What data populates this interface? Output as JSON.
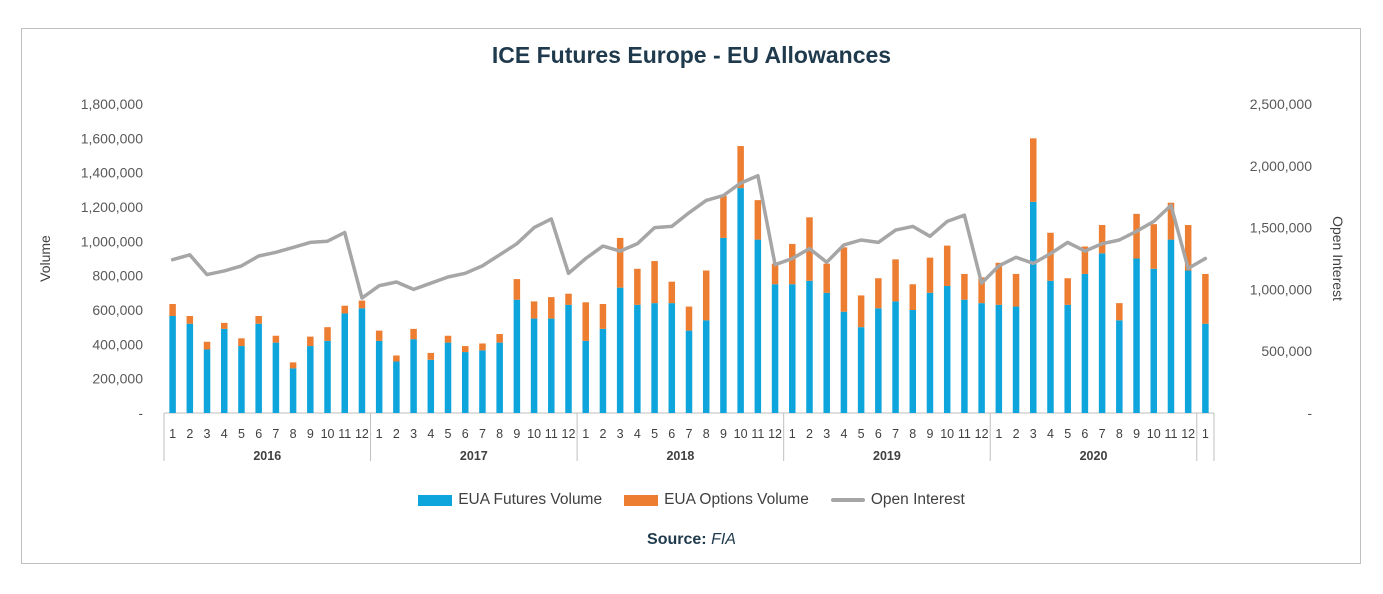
{
  "chart_data": {
    "type": "bar",
    "title": "ICE Futures Europe - EU Allowances",
    "ylabel": "Volume",
    "y2label": "Open Interest",
    "ylim": [
      0,
      1800000
    ],
    "y2lim": [
      0,
      2500000
    ],
    "yticks": [
      "-",
      "200,000",
      "400,000",
      "600,000",
      "800,000",
      "1,000,000",
      "1,200,000",
      "1,400,000",
      "1,600,000",
      "1,800,000"
    ],
    "y2ticks": [
      "-",
      "500,000",
      "1,000,000",
      "1,500,000",
      "2,000,000",
      "2,500,000"
    ],
    "years": [
      "2016",
      "2017",
      "2018",
      "2019",
      "2020"
    ],
    "categories": [
      "1",
      "2",
      "3",
      "4",
      "5",
      "6",
      "7",
      "8",
      "9",
      "10",
      "11",
      "12",
      "1",
      "2",
      "3",
      "4",
      "5",
      "6",
      "7",
      "8",
      "9",
      "10",
      "11",
      "12",
      "1",
      "2",
      "3",
      "4",
      "5",
      "6",
      "7",
      "8",
      "9",
      "10",
      "11",
      "12",
      "1",
      "2",
      "3",
      "4",
      "5",
      "6",
      "7",
      "8",
      "9",
      "10",
      "11",
      "12",
      "1",
      "2",
      "3",
      "4",
      "5",
      "6",
      "7",
      "8",
      "9",
      "10",
      "11",
      "12",
      "1"
    ],
    "stacked": true,
    "legend": "bottom",
    "grid": false,
    "series": [
      {
        "name": "EUA Futures Volume",
        "color": "#0ea4dc",
        "axis": "left",
        "values": [
          565000,
          520000,
          370000,
          490000,
          390000,
          520000,
          410000,
          260000,
          390000,
          420000,
          580000,
          610000,
          420000,
          300000,
          430000,
          310000,
          410000,
          355000,
          365000,
          410000,
          660000,
          550000,
          550000,
          630000,
          420000,
          490000,
          730000,
          630000,
          640000,
          640000,
          480000,
          540000,
          1020000,
          1310000,
          1010000,
          750000,
          750000,
          770000,
          700000,
          590000,
          500000,
          610000,
          650000,
          600000,
          700000,
          740000,
          660000,
          640000,
          630000,
          620000,
          1230000,
          770000,
          630000,
          810000,
          930000,
          540000,
          900000,
          840000,
          1010000,
          830000,
          520000
        ]
      },
      {
        "name": "EUA Options Volume",
        "color": "#ed7d31",
        "axis": "left",
        "values": [
          70000,
          45000,
          45000,
          35000,
          45000,
          45000,
          40000,
          35000,
          55000,
          80000,
          45000,
          45000,
          60000,
          35000,
          60000,
          40000,
          40000,
          35000,
          40000,
          50000,
          120000,
          100000,
          125000,
          65000,
          225000,
          145000,
          290000,
          210000,
          245000,
          125000,
          140000,
          290000,
          245000,
          245000,
          230000,
          120000,
          235000,
          370000,
          170000,
          375000,
          185000,
          175000,
          245000,
          150000,
          205000,
          235000,
          150000,
          150000,
          245000,
          190000,
          370000,
          280000,
          155000,
          160000,
          165000,
          100000,
          260000,
          260000,
          215000,
          265000,
          290000
        ]
      },
      {
        "name": "Open Interest",
        "color": "#a6a6a6",
        "axis": "right",
        "type": "line",
        "values": [
          1240000,
          1280000,
          1120000,
          1150000,
          1190000,
          1270000,
          1300000,
          1340000,
          1380000,
          1390000,
          1460000,
          930000,
          1030000,
          1060000,
          1000000,
          1050000,
          1100000,
          1130000,
          1190000,
          1280000,
          1370000,
          1500000,
          1570000,
          1130000,
          1250000,
          1350000,
          1310000,
          1370000,
          1500000,
          1510000,
          1620000,
          1720000,
          1760000,
          1860000,
          1920000,
          1200000,
          1250000,
          1330000,
          1220000,
          1360000,
          1400000,
          1380000,
          1480000,
          1510000,
          1430000,
          1550000,
          1600000,
          1050000,
          1190000,
          1260000,
          1210000,
          1290000,
          1380000,
          1310000,
          1370000,
          1400000,
          1470000,
          1550000,
          1680000,
          1170000,
          1250000
        ]
      }
    ]
  },
  "source": {
    "label": "Source:",
    "value": "FIA"
  }
}
